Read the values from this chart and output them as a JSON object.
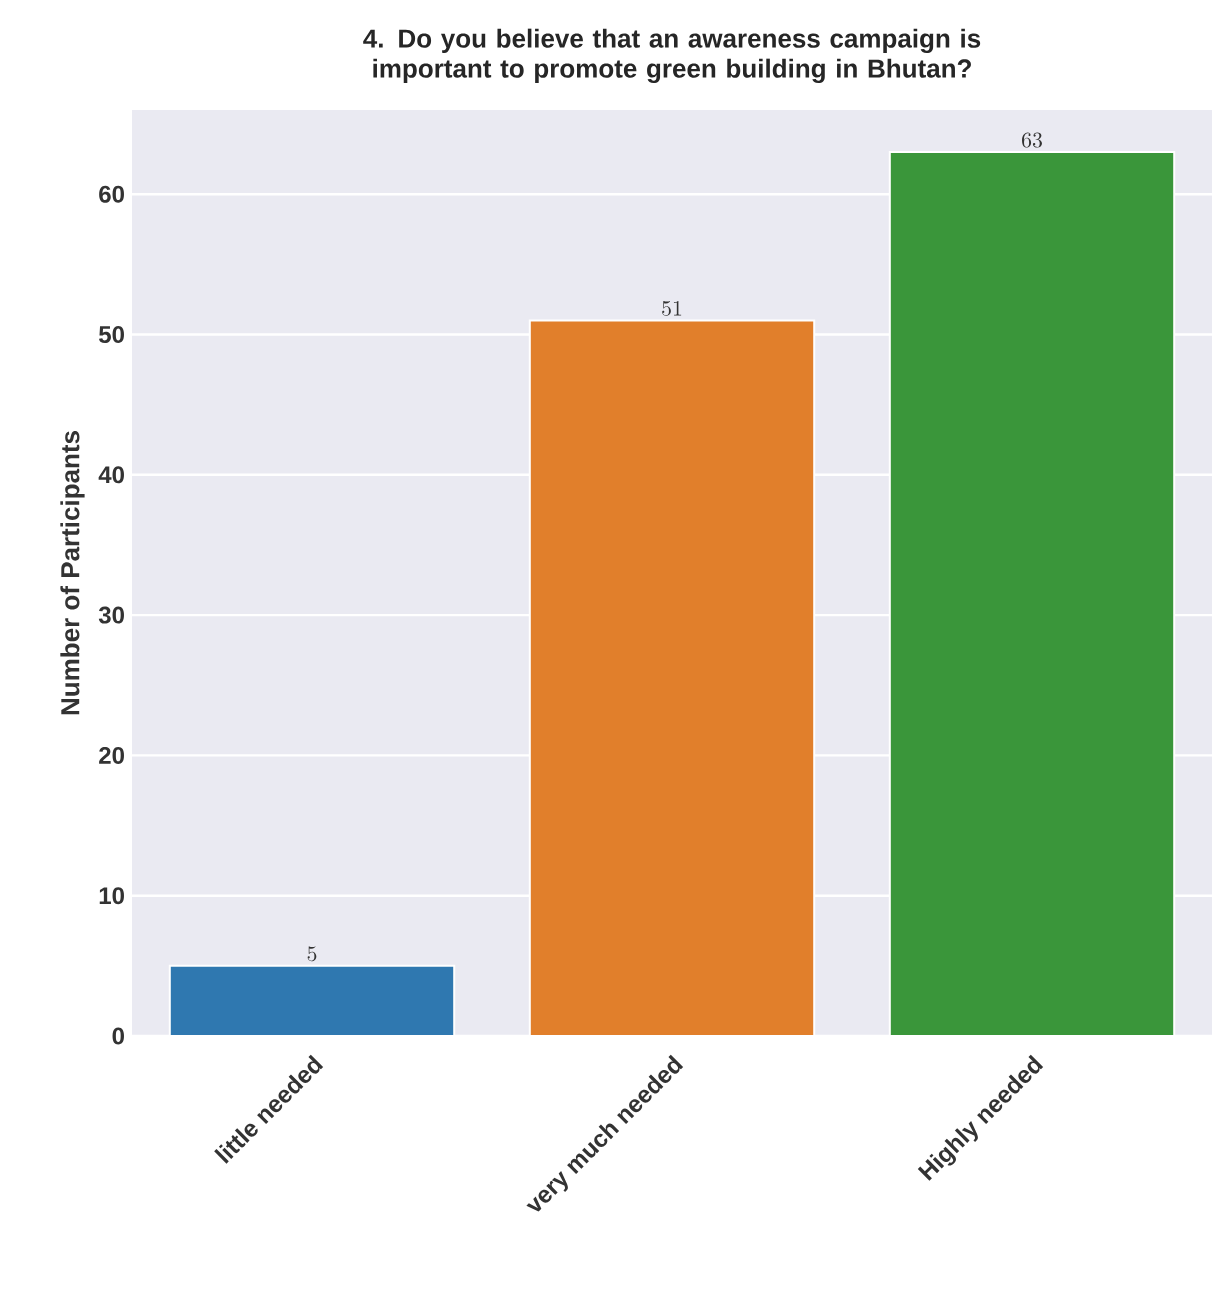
{
  "chart_data": {
    "type": "bar",
    "title": "4. Do you believe that an awareness campaign is important to promote green building in Bhutan?",
    "ylabel": "Number of Participants",
    "categories": [
      "little needed",
      "very much needed",
      "Highly needed"
    ],
    "values": [
      5,
      51,
      63
    ],
    "colors": [
      "#2f78b0",
      "#e17f2b",
      "#3a963a"
    ],
    "ylim": [
      0,
      66
    ],
    "yticks": [
      0,
      10,
      20,
      30,
      40,
      50,
      60
    ],
    "grid": "y",
    "data_labels": true
  }
}
